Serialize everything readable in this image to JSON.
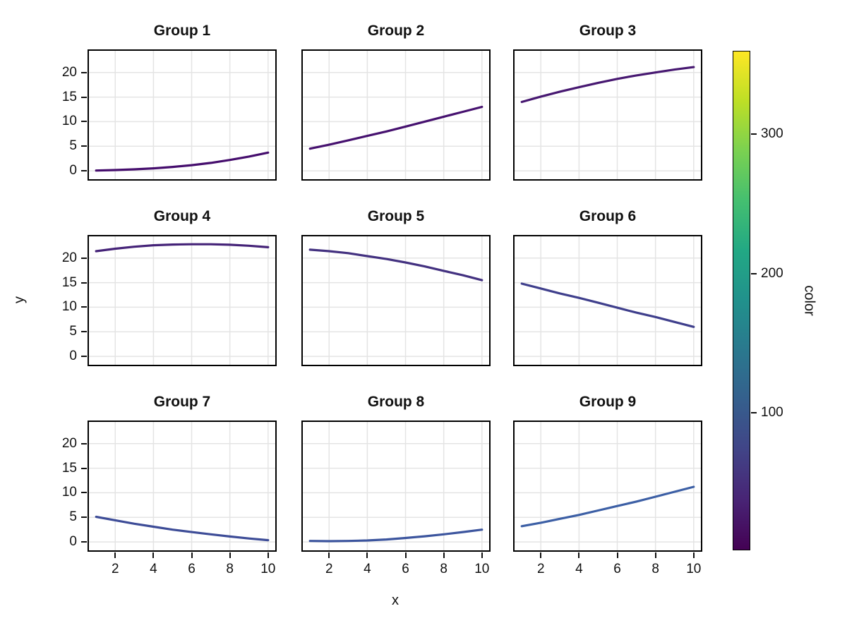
{
  "figure": {
    "background": "#ffffff"
  },
  "chart_data": {
    "type": "line",
    "title": "",
    "xlabel": "x",
    "ylabel": "y",
    "x": [
      1,
      2,
      3,
      4,
      5,
      6,
      7,
      8,
      9,
      10
    ],
    "xlim": [
      0.55,
      10.45
    ],
    "ylim": [
      -2,
      24.7
    ],
    "xticks": [
      2,
      4,
      6,
      8,
      10
    ],
    "yticks": [
      0,
      5,
      10,
      15,
      20
    ],
    "grid": true,
    "grid_color": "#e4e4e4",
    "frame_color": "#000000",
    "facets": [
      {
        "title": "Group 1",
        "color": "#450d6d",
        "y": [
          0.05,
          0.15,
          0.3,
          0.5,
          0.78,
          1.15,
          1.6,
          2.2,
          2.9,
          3.7
        ]
      },
      {
        "title": "Group 2",
        "color": "#46116f",
        "y": [
          4.5,
          5.3,
          6.2,
          7.1,
          8.0,
          9.0,
          10.0,
          11.0,
          12.0,
          13.0
        ]
      },
      {
        "title": "Group 3",
        "color": "#471871",
        "y": [
          14.0,
          15.1,
          16.1,
          17.0,
          17.9,
          18.7,
          19.4,
          20.0,
          20.6,
          21.1
        ]
      },
      {
        "title": "Group 4",
        "color": "#452378",
        "y": [
          21.4,
          21.9,
          22.3,
          22.6,
          22.75,
          22.8,
          22.8,
          22.7,
          22.5,
          22.2
        ]
      },
      {
        "title": "Group 5",
        "color": "#433180",
        "y": [
          21.7,
          21.4,
          21.0,
          20.4,
          19.8,
          19.1,
          18.3,
          17.4,
          16.5,
          15.5
        ]
      },
      {
        "title": "Group 6",
        "color": "#3f3f8c",
        "y": [
          14.8,
          13.8,
          12.8,
          11.9,
          10.9,
          9.9,
          8.9,
          8.0,
          7.0,
          6.0
        ]
      },
      {
        "title": "Group 7",
        "color": "#3d4c97",
        "y": [
          5.1,
          4.4,
          3.7,
          3.1,
          2.5,
          2.0,
          1.55,
          1.1,
          0.7,
          0.35
        ]
      },
      {
        "title": "Group 8",
        "color": "#3c559e",
        "y": [
          0.2,
          0.15,
          0.2,
          0.3,
          0.5,
          0.8,
          1.15,
          1.55,
          2.0,
          2.5
        ]
      },
      {
        "title": "Group 9",
        "color": "#3c5fa5",
        "y": [
          3.2,
          3.9,
          4.7,
          5.5,
          6.4,
          7.3,
          8.2,
          9.2,
          10.2,
          11.2
        ]
      }
    ],
    "colorbar": {
      "label": "color",
      "ticks": [
        100,
        200,
        300
      ],
      "range": [
        1,
        360
      ],
      "colormap": "viridis",
      "stops": [
        "#440154",
        "#482475",
        "#414487",
        "#355f8d",
        "#2a788e",
        "#21918c",
        "#22a884",
        "#44bf70",
        "#7ad151",
        "#bddf26",
        "#fde725"
      ]
    }
  }
}
